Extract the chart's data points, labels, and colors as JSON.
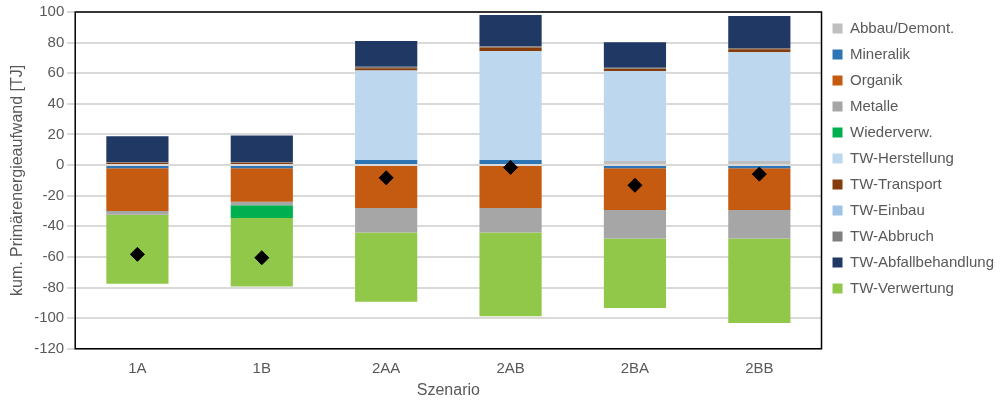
{
  "chart_data": {
    "type": "bar",
    "stacked": true,
    "xlabel": "Szenario",
    "ylabel": "kum. Primärenergieaufwand [TJ]",
    "categories": [
      "1A",
      "1B",
      "2AA",
      "2AB",
      "2BA",
      "2BB"
    ],
    "ylim": [
      -120,
      100
    ],
    "yticks": [
      -120,
      -100,
      -80,
      -60,
      -40,
      -20,
      0,
      20,
      40,
      60,
      80,
      100
    ],
    "grid": "y",
    "legend": "right",
    "series": [
      {
        "name": "Abbau/Demont.",
        "color": "#bfbfbf",
        "values": [
          0,
          0,
          null,
          null,
          2.6,
          2.6
        ]
      },
      {
        "name": "Mineralik",
        "color": "#2e75b6",
        "values": [
          -2,
          -2,
          3.3,
          3.3,
          -2,
          -2
        ]
      },
      {
        "name": "Organik",
        "color": "#c55a11",
        "values": [
          -28,
          -22,
          -28.1,
          -28.1,
          -27.4,
          -27.4
        ]
      },
      {
        "name": "Metalle",
        "color": "#a6a6a6",
        "values": [
          -2.5,
          -2.2,
          -16,
          -16,
          -18.6,
          -18.6
        ]
      },
      {
        "name": "Wiederverw.",
        "color": "#00b050",
        "values": [
          0,
          -8.3,
          0,
          0,
          0,
          0
        ]
      },
      {
        "name": "TW-Herstellung",
        "color": "#bdd7ee",
        "values": [
          null,
          null,
          58.5,
          71,
          58.8,
          71.1
        ]
      },
      {
        "name": "TW-Transport",
        "color": "#843c0c",
        "values": [
          1.5,
          1.5,
          1.5,
          2.5,
          1.5,
          2
        ]
      },
      {
        "name": "TW-Einbau",
        "color": "#9dc3e6",
        "values": [
          0,
          0,
          0,
          0,
          0,
          0
        ]
      },
      {
        "name": "TW-Abbruch",
        "color": "#7f7f7f",
        "values": [
          0.3,
          0.3,
          1,
          0.6,
          0.7,
          0.8
        ]
      },
      {
        "name": "TW-Abfallbehandlung",
        "color": "#1f3864",
        "values": [
          17,
          17.5,
          16.8,
          20.6,
          16.7,
          20.9
        ]
      },
      {
        "name": "TW-Verwertung",
        "color": "#92c84a",
        "values": [
          -45,
          -44.8,
          -45.2,
          -54.6,
          -45.4,
          -55.1
        ]
      },
      {
        "type": "scatter",
        "marker": "diamond",
        "color": "#000000",
        "x": [
          "1A",
          "1B",
          "2AA",
          "2AB",
          "2BA",
          "2BB"
        ],
        "values": [
          -58.3,
          -60.5,
          -8.3,
          -1.5,
          -13.2,
          -5.9
        ]
      }
    ]
  }
}
